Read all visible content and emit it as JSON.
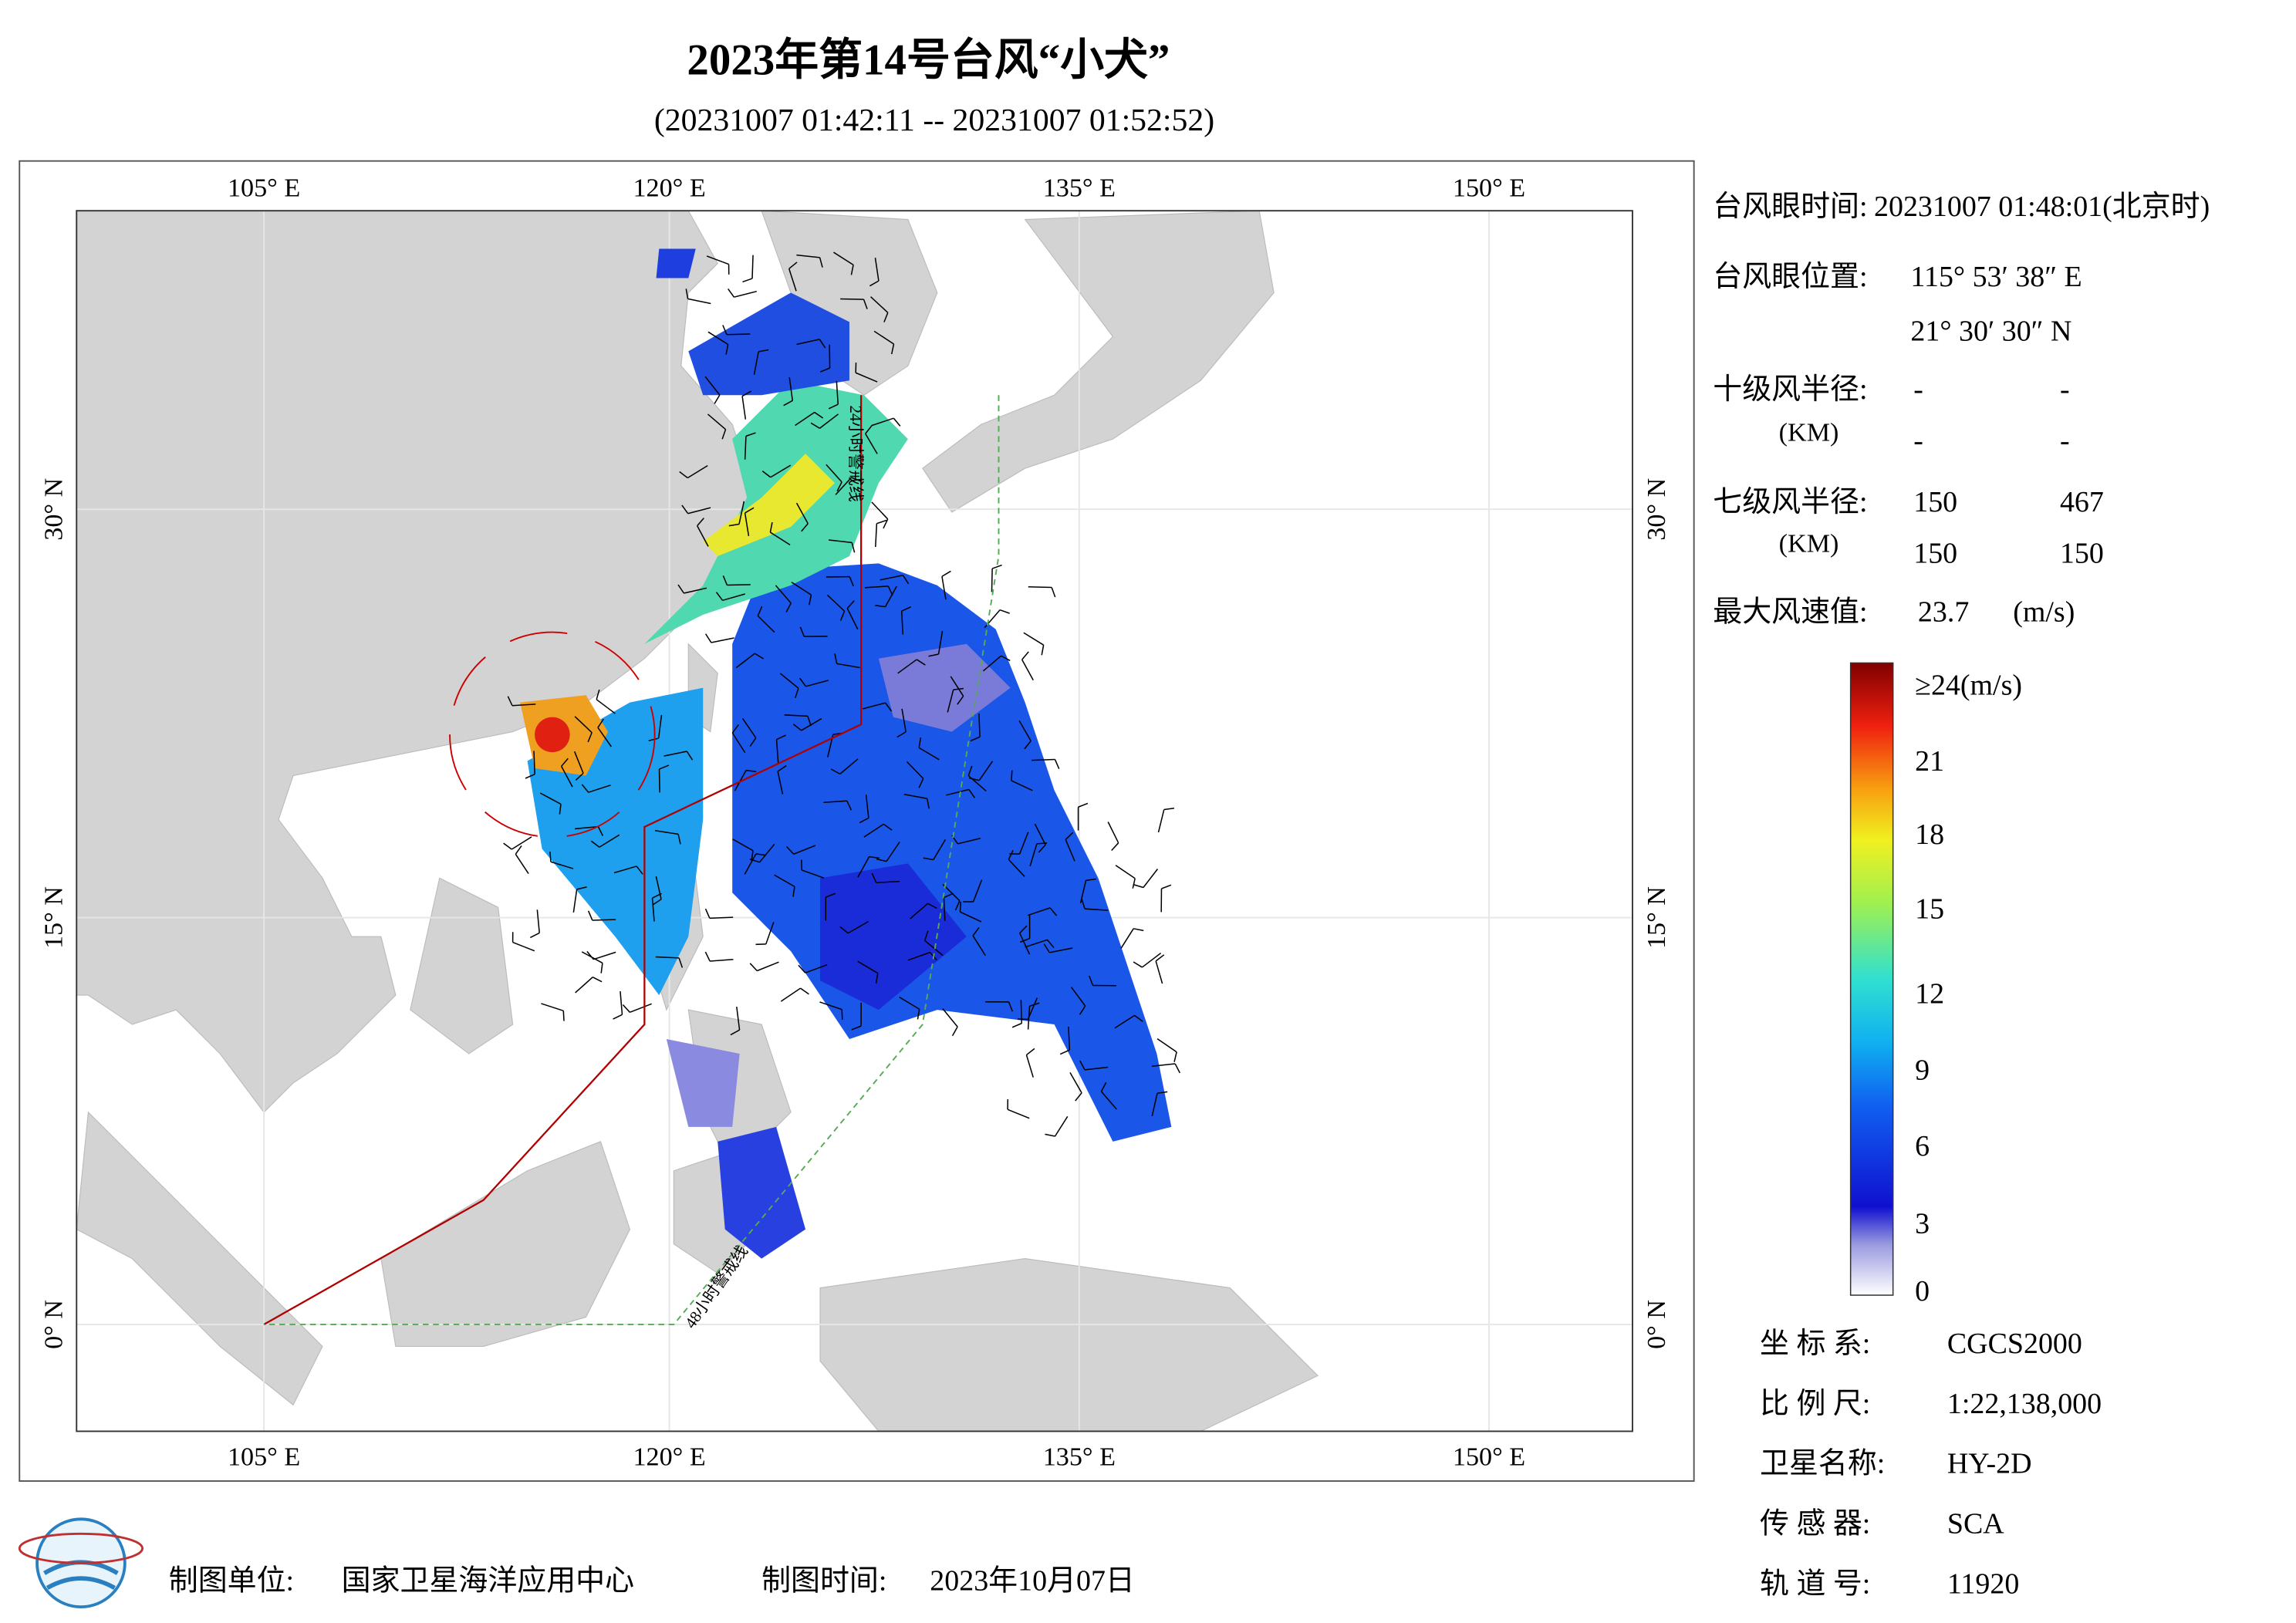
{
  "header": {
    "title": "2023年第14号台风“小犬”",
    "subtitle": "(20231007 01:42:11 -- 20231007 01:52:52)"
  },
  "map": {
    "lon_labels": [
      "105° E",
      "120° E",
      "135° E",
      "150° E"
    ],
    "lat_labels": [
      "30° N",
      "15° N",
      "0° N"
    ],
    "annotations": [
      "24小时警戒线",
      "48小时警戒线"
    ]
  },
  "info": {
    "eye_time": {
      "label": "台风眼时间:",
      "value": "20231007 01:48:01(北京时)"
    },
    "eye_position": {
      "label": "台风眼位置:",
      "lon": "115° 53′ 38″ E",
      "lat": "21° 30′ 30″ N"
    },
    "r10": {
      "label": "十级风半径:",
      "unit": "(KM)",
      "values": [
        [
          "-",
          "-"
        ],
        [
          "-",
          "-"
        ]
      ]
    },
    "r7": {
      "label": "七级风半径:",
      "unit": "(KM)",
      "values": [
        [
          "150",
          "467"
        ],
        [
          "150",
          "150"
        ]
      ]
    },
    "max_wind": {
      "label": "最大风速值:",
      "value": "23.7",
      "unit": "(m/s)"
    }
  },
  "colorbar": {
    "labels": [
      "≥24(m/s)",
      "21",
      "18",
      "15",
      "12",
      "9",
      "6",
      "3",
      "0"
    ]
  },
  "meta": [
    {
      "label": "坐 标 系:",
      "value": "CGCS2000"
    },
    {
      "label": "比 例 尺:",
      "value": "1:22,138,000"
    },
    {
      "label": "卫星名称:",
      "value": "HY-2D"
    },
    {
      "label": "传 感 器:",
      "value": "SCA"
    },
    {
      "label": "轨 道 号:",
      "value": "11920"
    }
  ],
  "footer": {
    "unit_label": "制图单位:",
    "unit": "国家卫星海洋应用中心",
    "time_label": "制图时间:",
    "time": "2023年10月07日"
  }
}
